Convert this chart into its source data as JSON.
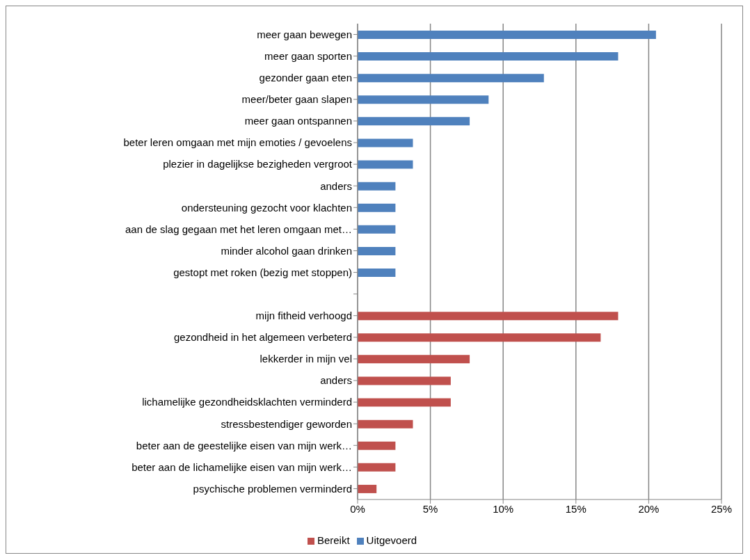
{
  "chart_data": {
    "type": "bar",
    "orientation": "horizontal",
    "stacked": true,
    "categories": [
      "meer gaan bewegen",
      "meer gaan sporten",
      "gezonder gaan eten",
      "meer/beter gaan slapen",
      "meer gaan ontspannen",
      "beter leren omgaan met mijn emoties / gevoelens",
      "plezier in dagelijkse bezigheden vergroot",
      "anders",
      "ondersteuning gezocht voor klachten",
      "aan de slag gegaan met het leren omgaan met…",
      "minder alcohol gaan drinken",
      "gestopt met roken (bezig met stoppen)",
      null,
      "mijn fitheid verhoogd",
      "gezondheid in het algemeen verbeterd",
      "lekkerder in mijn vel",
      "anders",
      "lichamelijke gezondheidsklachten verminderd",
      "stressbestendiger geworden",
      "beter aan de geestelijke eisen van mijn werk…",
      "beter aan de lichamelijke eisen van mijn werk…",
      "psychische  problemen  verminderd"
    ],
    "series": [
      {
        "name": "Bereikt",
        "color": "#c0504d",
        "values": [
          null,
          null,
          null,
          null,
          null,
          null,
          null,
          null,
          null,
          null,
          null,
          null,
          null,
          17.9,
          16.7,
          7.7,
          6.4,
          6.4,
          3.8,
          2.6,
          2.6,
          1.3
        ]
      },
      {
        "name": "Uitgevoerd",
        "color": "#4f81bd",
        "values": [
          20.5,
          17.9,
          12.8,
          9.0,
          7.7,
          3.8,
          3.8,
          2.6,
          2.6,
          2.6,
          2.6,
          2.6,
          null,
          null,
          null,
          null,
          null,
          null,
          null,
          null,
          null,
          null
        ]
      }
    ],
    "xlim": [
      0,
      25
    ],
    "xticks": [
      {
        "value": 0,
        "label": "0%"
      },
      {
        "value": 5,
        "label": "5%"
      },
      {
        "value": 10,
        "label": "10%"
      },
      {
        "value": 15,
        "label": "15%"
      },
      {
        "value": 20,
        "label": "20%"
      },
      {
        "value": 25,
        "label": "25%"
      }
    ],
    "grid": "x",
    "legend": "bottom"
  }
}
